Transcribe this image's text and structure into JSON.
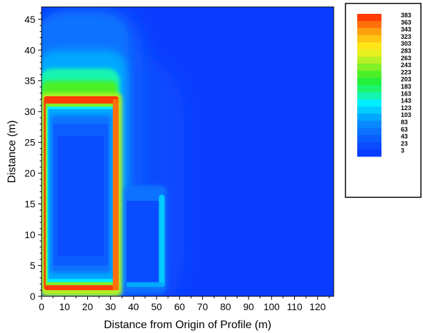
{
  "chart_data": {
    "type": "heatmap",
    "title": "",
    "xlabel": "Distance from Origin of Profile (m)",
    "ylabel": "Distance (m)",
    "xlim": [
      0,
      127
    ],
    "ylim": [
      0,
      47
    ],
    "x_ticks": [
      0,
      10,
      20,
      30,
      40,
      50,
      60,
      70,
      80,
      90,
      100,
      110,
      120
    ],
    "y_ticks": [
      0,
      5,
      10,
      15,
      20,
      25,
      30,
      35,
      40,
      45
    ],
    "grid": false,
    "legend_position": "top-right",
    "contour_levels": [
      3,
      23,
      43,
      63,
      83,
      103,
      123,
      143,
      163,
      183,
      203,
      223,
      243,
      263,
      283,
      303,
      323,
      343,
      363,
      383
    ],
    "level_colors": [
      "#0a3cff",
      "#0a4cff",
      "#0a5eff",
      "#0a72ff",
      "#0a88ff",
      "#00a8ff",
      "#00ccff",
      "#00eeff",
      "#13f5b0",
      "#1ef56e",
      "#22f03c",
      "#4cf028",
      "#80f028",
      "#b4f023",
      "#e6f01e",
      "#ffe619",
      "#ffc614",
      "#ffa00f",
      "#ff700a",
      "#ff3c05"
    ],
    "features": [
      {
        "name": "large-rectangle",
        "x_range": [
          1,
          32
        ],
        "y_range": [
          1.5,
          31
        ],
        "edge_value": 383,
        "interior_value": 43
      },
      {
        "name": "small-rectangle",
        "x_range": [
          37,
          53
        ],
        "y_range": [
          1.5,
          16.5
        ],
        "edge_value": 123,
        "interior_value": 23
      }
    ]
  }
}
